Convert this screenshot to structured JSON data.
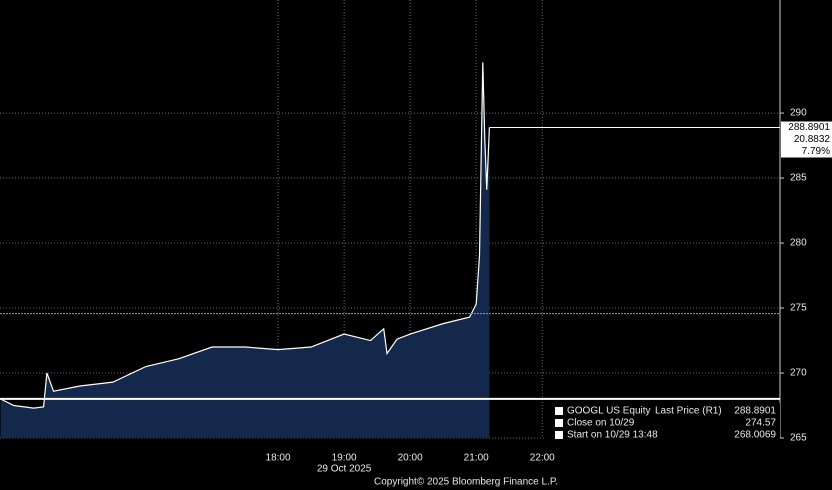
{
  "chart_data": {
    "type": "area",
    "series": [
      {
        "name": "GOOGL US Equity",
        "color": "#ffffff",
        "fill": "#13284a",
        "x": [
          13.8,
          14.0,
          14.3,
          14.45,
          14.5,
          14.6,
          15.0,
          15.5,
          16.0,
          16.5,
          17.0,
          17.5,
          18.0,
          18.5,
          19.0,
          19.4,
          19.6,
          19.65,
          19.8,
          20.0,
          20.5,
          20.9,
          21.0,
          21.05,
          21.1,
          21.13,
          21.16,
          21.2
        ],
        "values": [
          268.0,
          267.5,
          267.3,
          267.4,
          270.0,
          268.6,
          269.0,
          269.3,
          270.5,
          271.1,
          272.0,
          272.0,
          271.8,
          272.0,
          273.0,
          272.5,
          273.4,
          271.5,
          272.6,
          273.0,
          273.8,
          274.3,
          275.3,
          279.0,
          293.9,
          288.0,
          284.1,
          288.8901
        ]
      }
    ],
    "xlim": [
      13.79,
      25.6
    ],
    "xticks": [
      {
        "value": 18,
        "label": "18:00"
      },
      {
        "value": 19,
        "label": "19:00"
      },
      {
        "value": 20,
        "label": "20:00"
      },
      {
        "value": 21,
        "label": "21:00"
      },
      {
        "value": 22,
        "label": "22:00"
      }
    ],
    "x_date": "29 Oct 2025",
    "ylim": [
      265,
      298.7
    ],
    "yticks": [
      265,
      270,
      275,
      280,
      285,
      290
    ],
    "grid": true,
    "legend": {
      "ticker": "GOOGL US Equity",
      "label": "Last Price (R1)",
      "value": 288.8901
    },
    "last_price_box": {
      "value": 288.8901,
      "change": 20.8832,
      "change_pct": {
        "value": 7.79,
        "label": "7.79%"
      }
    },
    "reference_lines": [
      {
        "label": "Close on 10/29",
        "value": 274.57,
        "color": "#9a9a9a"
      },
      {
        "label": "Start on 10/29 13:48",
        "value": 268.0069,
        "color": "#ffffff"
      }
    ],
    "footer": "Copyright© 2025 Bloomberg Finance L.P."
  }
}
